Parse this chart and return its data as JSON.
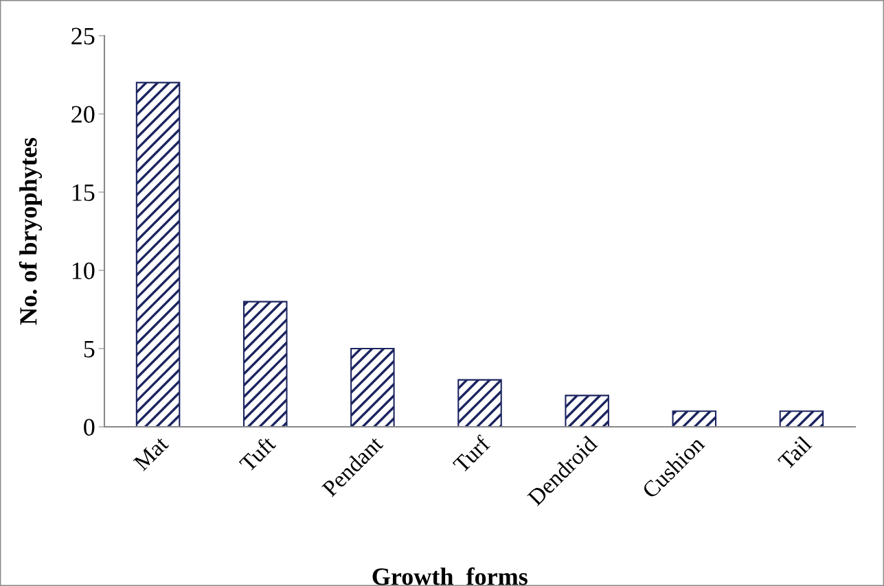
{
  "chart_data": {
    "type": "bar",
    "xlabel": "Growth  forms",
    "ylabel": "No. of bryophytes",
    "categories": [
      "Mat",
      "Tuft",
      "Pendant",
      "Turf",
      "Dendroid",
      "Cushion",
      "Tail"
    ],
    "values": [
      22,
      8,
      5,
      3,
      2,
      1,
      1
    ],
    "color": "#1c2560",
    "ylim": [
      0,
      25
    ],
    "yticks": [
      0,
      5,
      10,
      15,
      20,
      25
    ],
    "grid": false,
    "legend": false
  }
}
